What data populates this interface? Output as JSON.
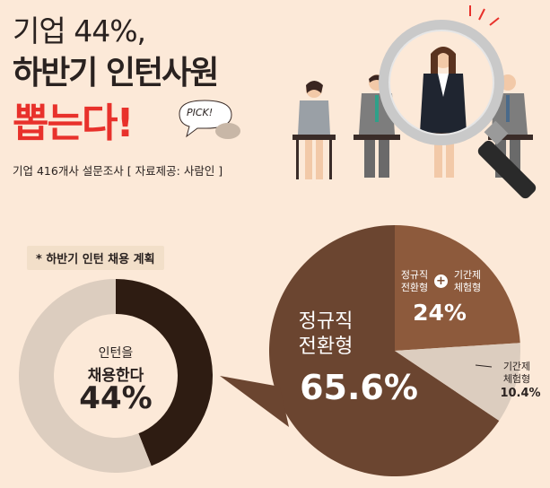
{
  "header": {
    "title_line1": "기업 44%,",
    "title_line2": "하반기 인턴사원",
    "title_line3": "뽑는다!",
    "subtitle": "기업 416개사 설문조사 [ 자료제공: 사람인 ]",
    "pick_bubble": "PICK!"
  },
  "section": {
    "tag": "* 하반기 인턴 채용 계획"
  },
  "colors": {
    "background": "#fce9d8",
    "accent_red": "#e8312b",
    "dark_brown": "#2e1c12",
    "mid_brown": "#6b4530",
    "light_brown": "#8d5a3c",
    "beige": "#dccdbf"
  },
  "chart_data": [
    {
      "type": "pie",
      "title": "인턴을 채용한다",
      "center_text": [
        "인턴을",
        "채용한다"
      ],
      "values": [
        44,
        56
      ],
      "value_label": "44%"
    },
    {
      "type": "pie",
      "categories": [
        "정규직 전환형",
        "정규직 전환형 + 기간제 체험형",
        "기간제 체험형"
      ],
      "values": [
        65.6,
        24,
        10.4
      ],
      "labels": {
        "big": [
          "정규직",
          "전환형"
        ],
        "big_value": "65.6%",
        "mid_left": [
          "정규직",
          "전환형"
        ],
        "mid_plus": "+",
        "mid_right": [
          "기간제",
          "체험형"
        ],
        "mid_value": "24%",
        "small": [
          "기간제",
          "체험형"
        ],
        "small_value": "10.4%"
      }
    }
  ]
}
